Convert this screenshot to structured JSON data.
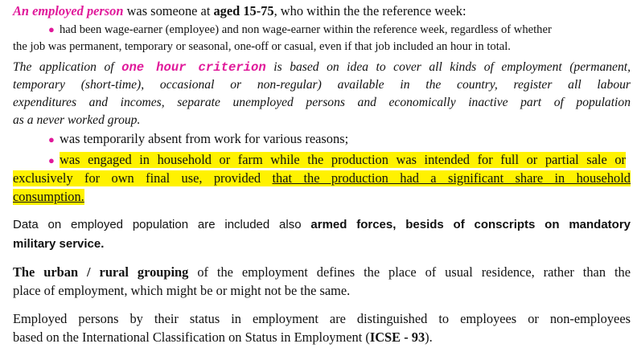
{
  "intro": {
    "term": "An employed person",
    "text1": " was someone at ",
    "age": "aged 15-75",
    "text2": ", who within the the reference week:"
  },
  "bullet1": {
    "line1": "had been wage-earner (employee) and non wage-earner within the reference week, regardless of whether",
    "line2": "the job was permanent, temporary or seasonal, one-off or casual, even if that job included an hour in total."
  },
  "criterion": {
    "prefix": "The application of ",
    "term": "one hour criterion",
    "line1_rest": " is based on idea to cover all kinds of employment (permanent,",
    "line2": "temporary (short-time), occasional or non-regular) available in the country, register all labour",
    "line3": "expenditures and incomes, separate unemployed persons and economically inactive part of population",
    "line4": "as a never worked group."
  },
  "bullet2": "was temporarily absent from work for various reasons;",
  "bullet3": {
    "line1": "was engaged in household or farm while the production was intended for full or partial sale or",
    "line2_a": "exclusively for own final use, provided ",
    "line2_b": "that the production had a significant share in household",
    "line3": "consumption."
  },
  "armed": {
    "text1": "Data on employed population are included also ",
    "bold1": "armed forces, besids of conscripts on mandatory",
    "bold2": "military service."
  },
  "urban": {
    "bold": "The urban / rural grouping",
    "line1_rest": " of the employment defines the place of usual residence, rather than the",
    "line2": "place of employment, which might be or might not be the same."
  },
  "status": {
    "line1": "Employed persons by their status in employment are distinguished to employees or non-employees",
    "line2_a": "based on the International Classification on Status in Employment (",
    "line2_b": "ICSE - 93",
    "line2_c": ")."
  }
}
